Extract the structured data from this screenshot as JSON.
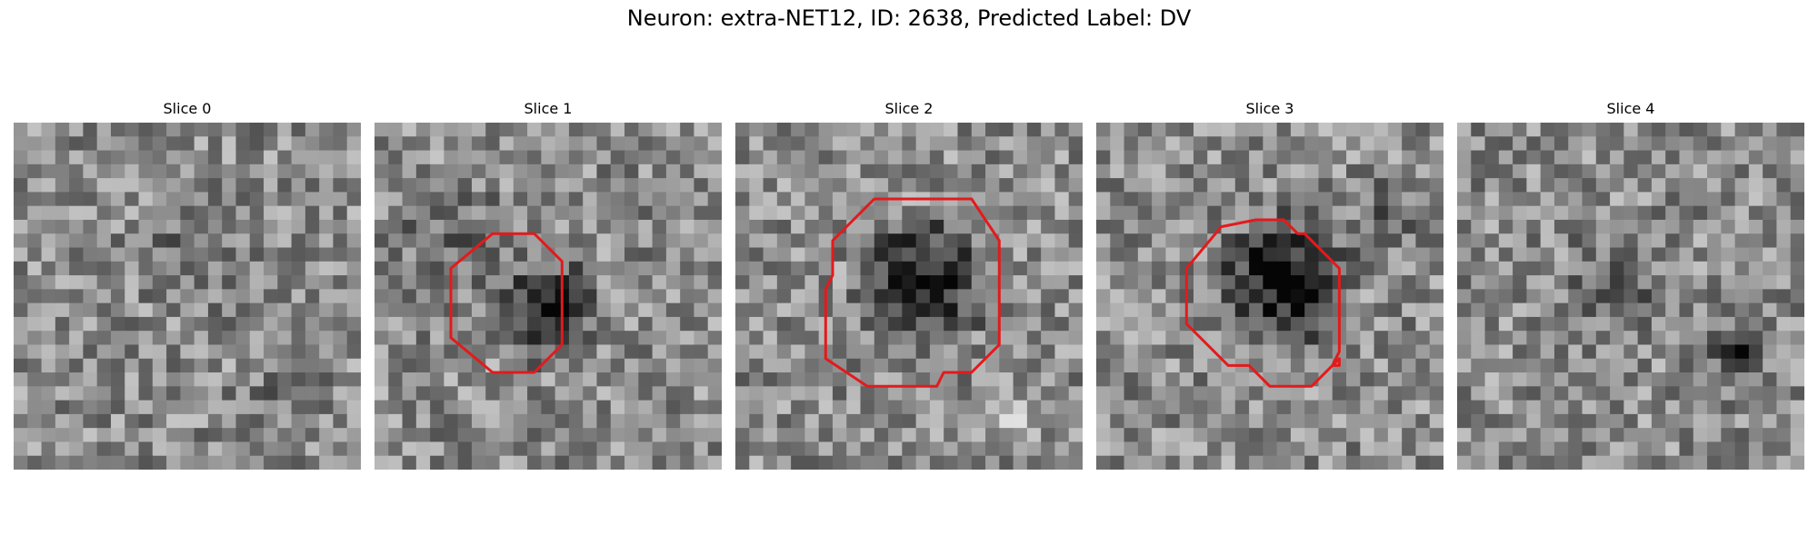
{
  "figure": {
    "title": "Neuron: extra-NET12, ID: 2638, Predicted Label: DV"
  },
  "colors": {
    "contour": "#e31a1c",
    "background": "#ffffff"
  },
  "panels": [
    {
      "title": "Slice 0",
      "has_contour": false
    },
    {
      "title": "Slice 1",
      "has_contour": true
    },
    {
      "title": "Slice 2",
      "has_contour": true
    },
    {
      "title": "Slice 3",
      "has_contour": true
    },
    {
      "title": "Slice 4",
      "has_contour": false
    }
  ]
}
